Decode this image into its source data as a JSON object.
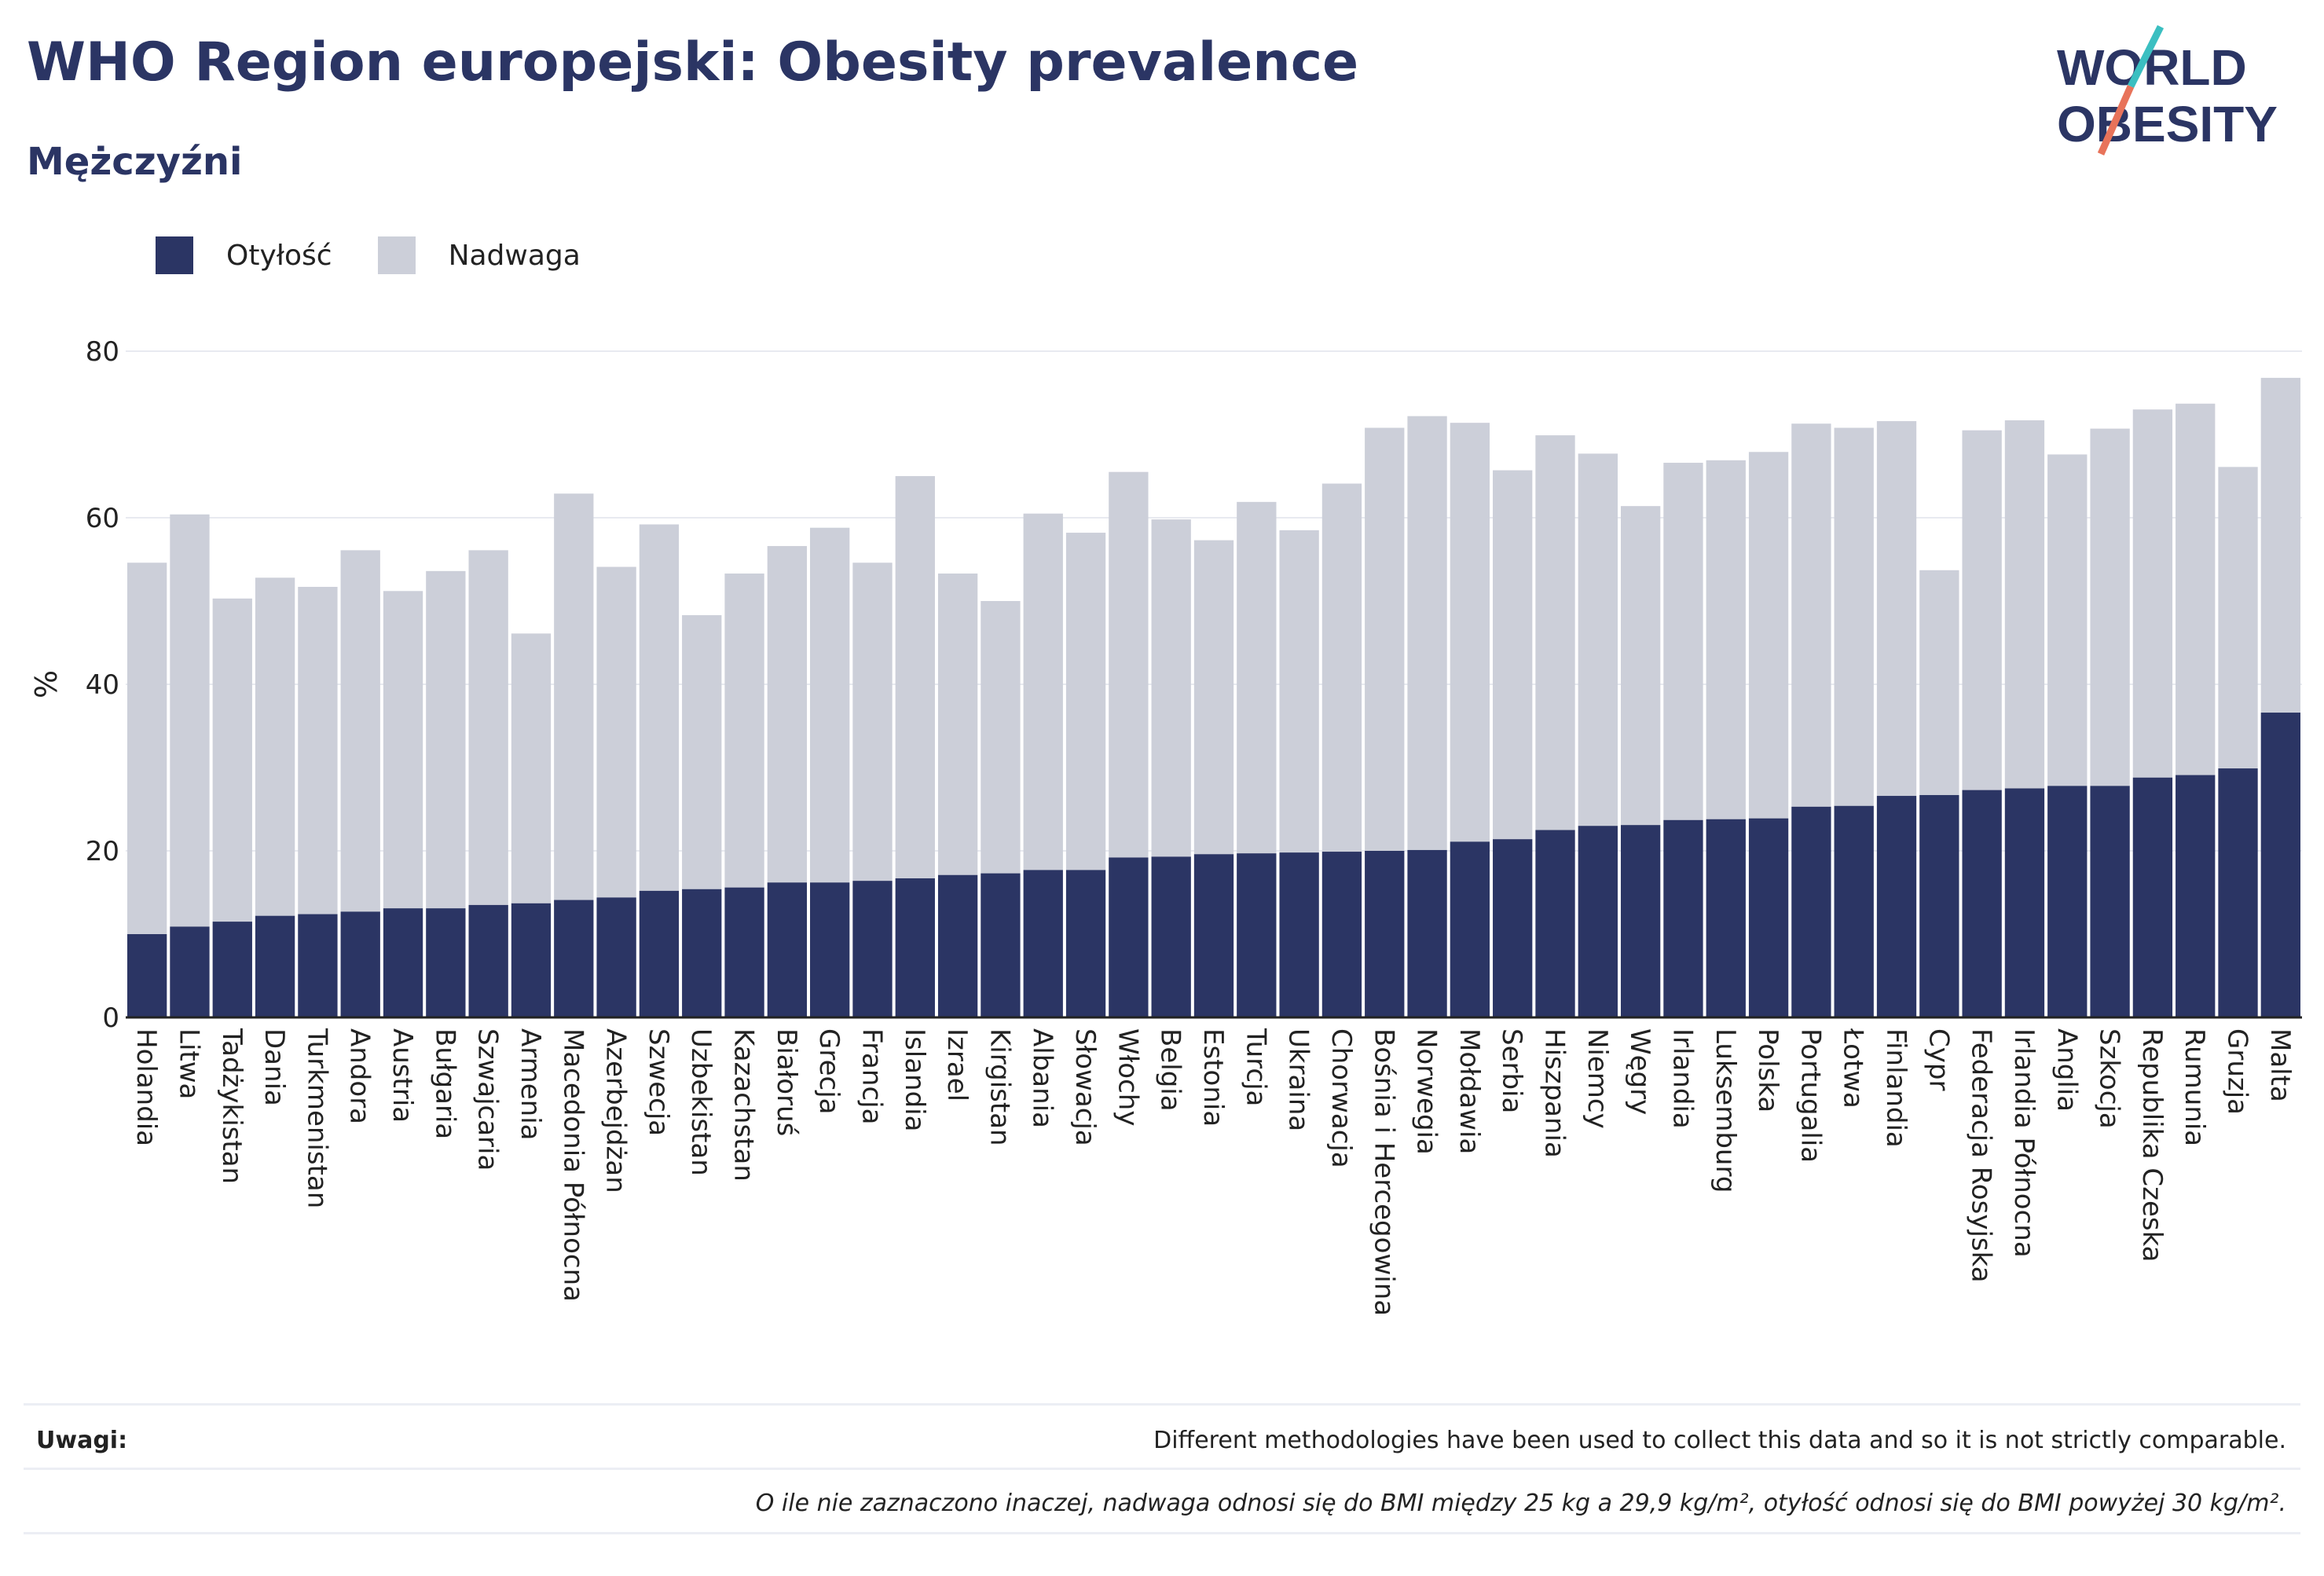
{
  "header": {
    "title": "WHO Region europejski: Obesity prevalence",
    "subtitle": "Mężczyźni"
  },
  "logo": {
    "line1": "WORLD",
    "line2": "OBESITY",
    "accent_teal": "#3bbfc1",
    "accent_coral": "#e8735a"
  },
  "legend": {
    "obesity_label": "Otyłość",
    "overweight_label": "Nadwaga"
  },
  "colors": {
    "obesity": "#2b3564",
    "overweight": "#cccfd9",
    "gridline": "#e8eaf0",
    "text": "#222222"
  },
  "notes": {
    "label": "Uwagi:",
    "note1": "Different methodologies have been used to collect this data and so it is not strictly comparable.",
    "note2": "O ile nie zaznaczono inaczej, nadwaga odnosi się do BMI między 25 kg a 29,9 kg/m², otyłość odnosi się do BMI powyżej 30 kg/m²."
  },
  "chart_data": {
    "type": "bar",
    "stacked": true,
    "ylabel": "%",
    "xlabel": "",
    "ylim": [
      0,
      80
    ],
    "yticks": [
      0,
      20,
      40,
      60,
      80
    ],
    "grid": true,
    "legend_position": "top-left",
    "categories": [
      "Holandia",
      "Litwa",
      "Tadżykistan",
      "Dania",
      "Turkmenistan",
      "Andora",
      "Austria",
      "Bułgaria",
      "Szwajcaria",
      "Armenia",
      "Macedonia Północna",
      "Azerbejdżan",
      "Szwecja",
      "Uzbekistan",
      "Kazachstan",
      "Białoruś",
      "Grecja",
      "Francja",
      "Islandia",
      "Izrael",
      "Kirgistan",
      "Albania",
      "Słowacja",
      "Włochy",
      "Belgia",
      "Estonia",
      "Turcja",
      "Ukraina",
      "Chorwacja",
      "Bośnia i Hercegowina",
      "Norwegia",
      "Mołdawia",
      "Serbia",
      "Hiszpania",
      "Niemcy",
      "Węgry",
      "Irlandia",
      "Luksemburg",
      "Polska",
      "Portugalia",
      "Łotwa",
      "Finlandia",
      "Cypr",
      "Federacja Rosyjska",
      "Irlandia Północna",
      "Anglia",
      "Szkocja",
      "Republika Czeska",
      "Rumunia",
      "Gruzja",
      "Malta"
    ],
    "series": [
      {
        "name": "Otyłość",
        "values": [
          10.0,
          10.9,
          11.5,
          12.2,
          12.4,
          12.7,
          13.1,
          13.1,
          13.5,
          13.7,
          14.1,
          14.4,
          15.2,
          15.4,
          15.6,
          16.2,
          16.2,
          16.4,
          16.7,
          17.1,
          17.3,
          17.7,
          17.7,
          19.2,
          19.3,
          19.6,
          19.7,
          19.8,
          19.9,
          20.0,
          20.1,
          21.1,
          21.4,
          22.5,
          23.0,
          23.1,
          23.7,
          23.8,
          23.9,
          25.3,
          25.4,
          26.6,
          26.7,
          27.3,
          27.5,
          27.8,
          27.8,
          28.8,
          29.1,
          29.9,
          36.6
        ]
      },
      {
        "name": "Nadwaga",
        "values": [
          44.6,
          49.5,
          38.8,
          40.6,
          39.3,
          43.4,
          38.1,
          40.5,
          42.6,
          32.4,
          48.8,
          39.7,
          44.0,
          32.9,
          37.7,
          40.4,
          42.6,
          38.2,
          48.3,
          36.2,
          32.7,
          42.8,
          40.5,
          46.3,
          40.5,
          37.7,
          42.2,
          38.7,
          44.2,
          50.8,
          52.1,
          50.3,
          44.3,
          47.4,
          44.7,
          38.3,
          42.9,
          43.1,
          44.0,
          46.0,
          45.4,
          45.0,
          27.0,
          43.2,
          44.2,
          39.8,
          42.9,
          44.2,
          44.6,
          36.2,
          40.2
        ]
      }
    ]
  }
}
